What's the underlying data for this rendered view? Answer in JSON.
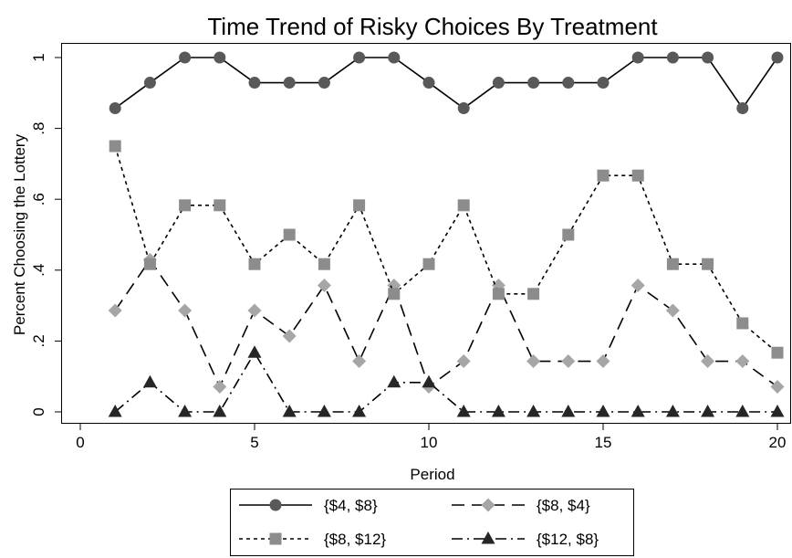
{
  "chart_data": {
    "type": "line",
    "title": "Time Trend of Risky Choices By Treatment",
    "xlabel": "Period",
    "ylabel": "Percent Choosing the Lottery",
    "xlim": [
      0,
      20
    ],
    "ylim": [
      0,
      1
    ],
    "xticks": [
      0,
      5,
      10,
      15,
      20
    ],
    "xtick_labels": [
      "0",
      "5",
      "10",
      "15",
      "20"
    ],
    "yticks": [
      0,
      0.2,
      0.4,
      0.6,
      0.8,
      1
    ],
    "ytick_labels": [
      "0",
      ".2",
      ".4",
      ".6",
      ".8",
      "1"
    ],
    "grid": false,
    "legend_position": "bottom",
    "x": [
      1,
      2,
      3,
      4,
      5,
      6,
      7,
      8,
      9,
      10,
      11,
      12,
      13,
      14,
      15,
      16,
      17,
      18,
      19,
      20
    ],
    "series": [
      {
        "name": "{$4, $8}",
        "color": "#000000",
        "marker": "circle",
        "marker_color": "#595959",
        "line_style": "solid",
        "values": [
          0.857,
          0.929,
          1,
          1,
          0.929,
          0.929,
          0.929,
          1,
          1,
          0.929,
          0.857,
          0.929,
          0.929,
          0.929,
          0.929,
          1,
          1,
          1,
          0.857,
          1
        ]
      },
      {
        "name": "{$8, $4}",
        "color": "#000000",
        "marker": "diamond",
        "marker_color": "#a6a6a6",
        "line_style": "long-dash",
        "values": [
          0.286,
          0.429,
          0.286,
          0.071,
          0.286,
          0.214,
          0.357,
          0.143,
          0.357,
          0.071,
          0.143,
          0.357,
          0.143,
          0.143,
          0.143,
          0.357,
          0.286,
          0.143,
          0.143,
          0.071
        ]
      },
      {
        "name": "{$8, $12}",
        "color": "#000000",
        "marker": "square",
        "marker_color": "#8c8c8c",
        "line_style": "short-dash",
        "values": [
          0.75,
          0.417,
          0.583,
          0.583,
          0.417,
          0.5,
          0.417,
          0.583,
          0.333,
          0.417,
          0.583,
          0.333,
          0.333,
          0.5,
          0.667,
          0.667,
          0.417,
          0.417,
          0.25,
          0.167
        ]
      },
      {
        "name": "{$12, $8}",
        "color": "#000000",
        "marker": "triangle",
        "marker_color": "#262626",
        "line_style": "dash-dot",
        "values": [
          0,
          0.083,
          0,
          0,
          0.167,
          0,
          0,
          0,
          0.083,
          0.083,
          0,
          0,
          0,
          0,
          0,
          0,
          0,
          0,
          0,
          0
        ]
      }
    ]
  }
}
